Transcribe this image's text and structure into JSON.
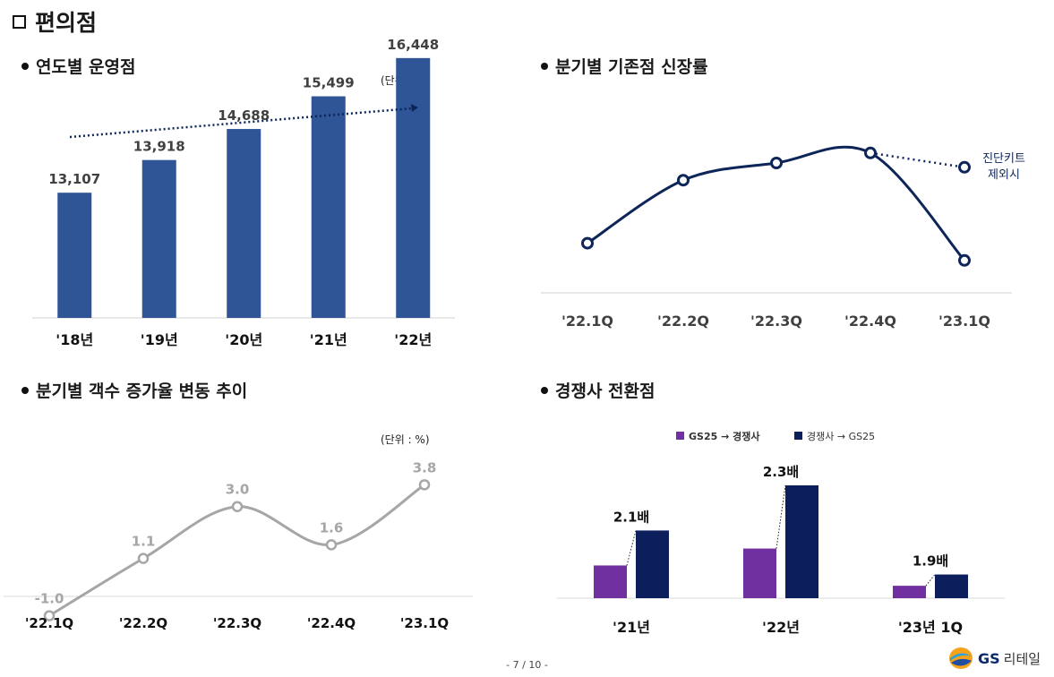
{
  "page_title": "편의점",
  "page_number": "- 7 / 10 -",
  "logo": {
    "brand": "GS",
    "suffix": "리테일"
  },
  "chart_data": [
    {
      "type": "bar",
      "title": "연도별 운영점",
      "unit": "(단위 : 점)",
      "categories": [
        "'18년",
        "'19년",
        "'20년",
        "'21년",
        "'22년"
      ],
      "values": [
        13107,
        13918,
        14688,
        15499,
        16448
      ],
      "value_labels": [
        "13,107",
        "13,918",
        "14,688",
        "15,499",
        "16,448"
      ],
      "ylim": [
        10000,
        17000
      ],
      "color": "#2f5597",
      "trend_arrow": true
    },
    {
      "type": "line",
      "title": "분기별 기존점 신장률",
      "categories": [
        "'22.1Q",
        "'22.2Q",
        "'22.3Q",
        "'22.4Q",
        "'23.1Q"
      ],
      "relative_values": [
        0.24,
        0.68,
        0.8,
        0.87,
        0.12
      ],
      "excluding_point": {
        "label": [
          "진단키트",
          "제외시"
        ],
        "relative_value": 0.77
      },
      "color": "#0d2558"
    },
    {
      "type": "line",
      "title": "분기별 객수 증가율 변동 추이",
      "unit": "(단위 : %)",
      "categories": [
        "'22.1Q",
        "'22.2Q",
        "'22.3Q",
        "'22.4Q",
        "'23.1Q"
      ],
      "values": [
        -1.0,
        1.1,
        3.0,
        1.6,
        3.8
      ],
      "value_labels": [
        "-1.0",
        "1.1",
        "3.0",
        "1.6",
        "3.8"
      ],
      "ylim": [
        -1.8,
        4.5
      ],
      "color": "#a6a6a6"
    },
    {
      "type": "bar",
      "title": "경쟁사 전환점",
      "categories": [
        "'21년",
        "'22년",
        "'23년 1Q"
      ],
      "series": [
        {
          "name": "GS25 → 경쟁사",
          "relative_values": [
            0.29,
            0.44,
            0.11
          ],
          "color": "#7030a0"
        },
        {
          "name": "경쟁사 → GS25",
          "relative_values": [
            0.6,
            1.0,
            0.21
          ],
          "color": "#0c1f5c"
        }
      ],
      "ratio_labels": [
        "2.1배",
        "2.3배",
        "1.9배"
      ]
    }
  ]
}
